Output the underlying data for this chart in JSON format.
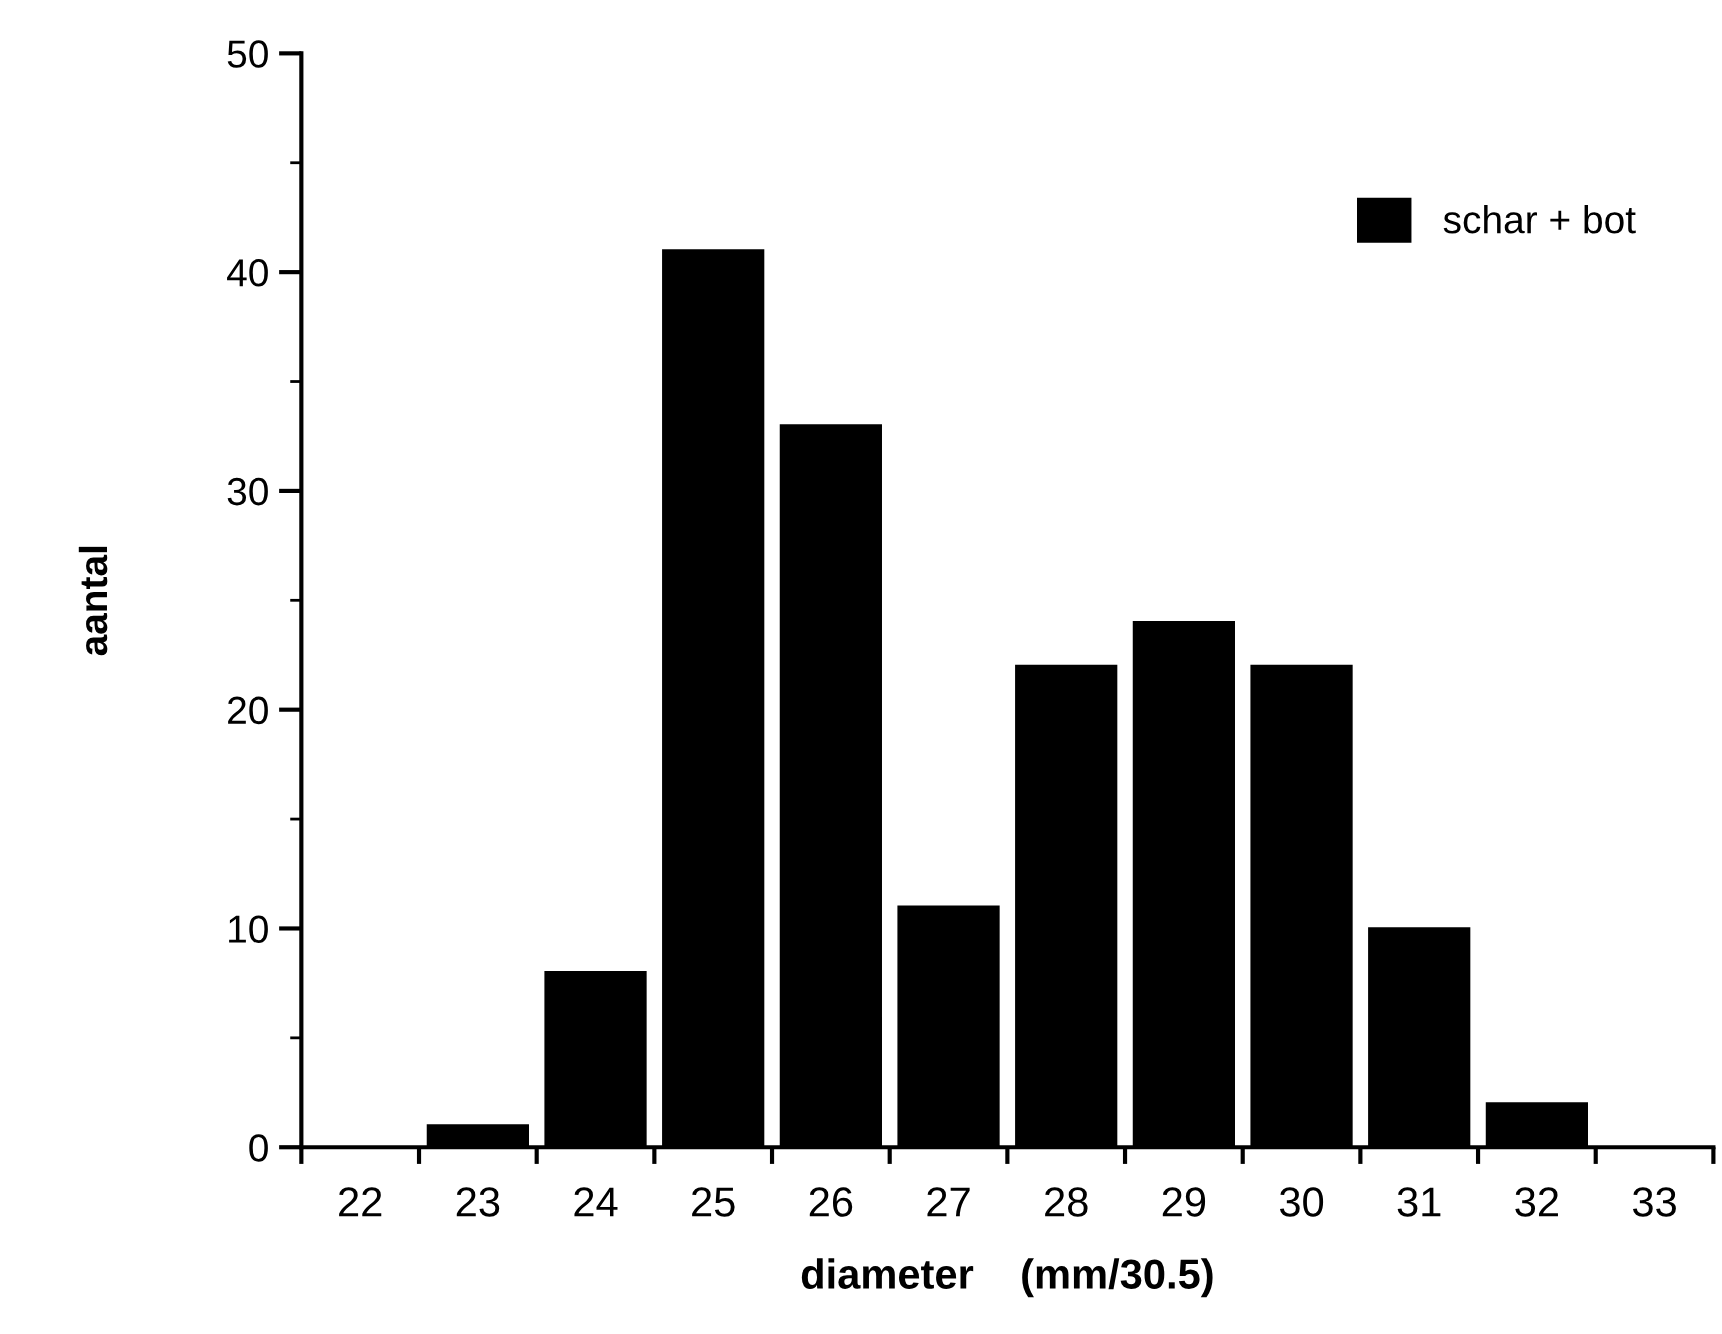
{
  "chart_data": {
    "type": "bar",
    "xlabel": "diameter    (mm/30.5)",
    "ylabel": "aantal",
    "categories": [
      "22",
      "23",
      "24",
      "25",
      "26",
      "27",
      "28",
      "29",
      "30",
      "31",
      "32",
      "33"
    ],
    "series": [
      {
        "name": "schar + bot",
        "color": "#000000",
        "values": [
          0,
          1,
          8,
          41,
          33,
          11,
          22,
          24,
          22,
          10,
          2,
          0
        ]
      }
    ],
    "ylim": [
      0,
      50
    ],
    "yticks": [
      0,
      10,
      20,
      30,
      40,
      50
    ],
    "grid": false,
    "legend": "top right"
  }
}
